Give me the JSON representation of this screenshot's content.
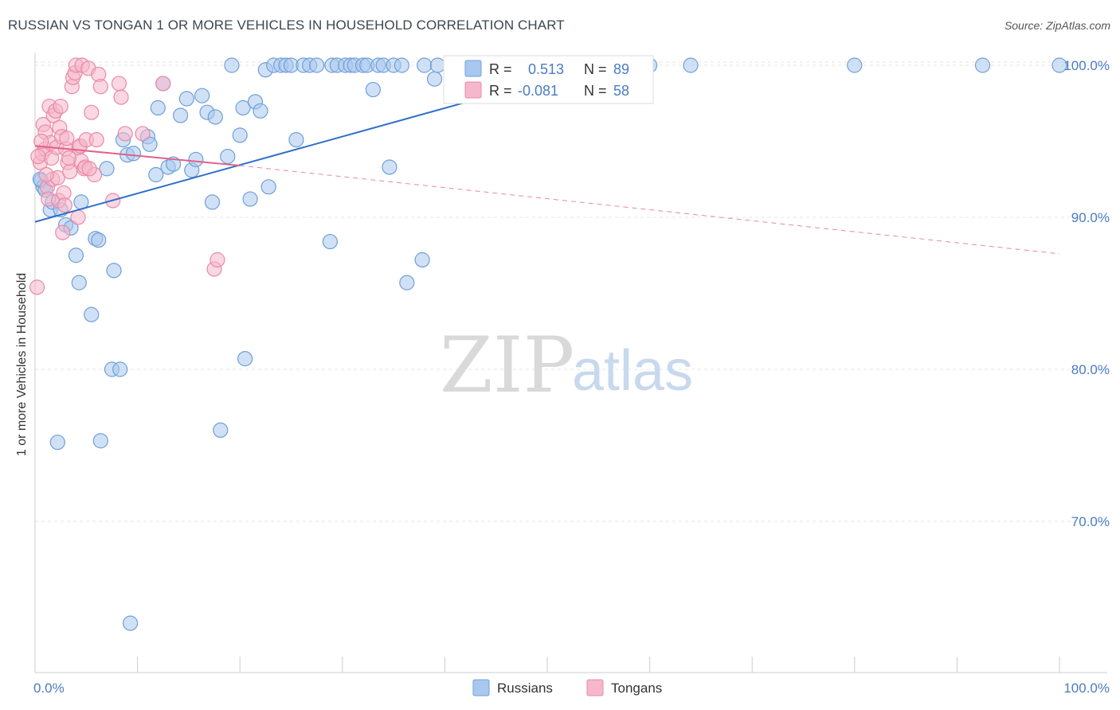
{
  "title": "RUSSIAN VS TONGAN 1 OR MORE VEHICLES IN HOUSEHOLD CORRELATION CHART",
  "source": "Source: ZipAtlas.com",
  "watermark": {
    "zip": "ZIP",
    "atlas": "atlas"
  },
  "chart_data": {
    "type": "scatter",
    "title": "RUSSIAN VS TONGAN 1 OR MORE VEHICLES IN HOUSEHOLD CORRELATION CHART",
    "xlabel": "",
    "ylabel": "1 or more Vehicles in Household",
    "xlim": [
      0,
      100
    ],
    "ylim": [
      60,
      101.5
    ],
    "x_tick_labels": [
      "0.0%",
      "100.0%"
    ],
    "y_ticks": [
      70,
      80,
      90,
      100
    ],
    "y_tick_labels": [
      "70.0%",
      "80.0%",
      "90.0%",
      "100.0%"
    ],
    "grid": true,
    "legend": {
      "placement": "top-center",
      "entries": [
        {
          "name": "Russians",
          "r_label": "R =",
          "r_value": "0.513",
          "n_label": "N =",
          "n_value": "89",
          "color": "#a9c8ef",
          "stroke": "#6f9fd8"
        },
        {
          "name": "Tongans",
          "r_label": "R =",
          "r_value": "-0.081",
          "n_label": "N =",
          "n_value": "58",
          "color": "#f6b7cb",
          "stroke": "#e98aa8"
        }
      ]
    },
    "series": [
      {
        "name": "Russians",
        "color": "#a9c8ef",
        "stroke": "#6f9fd8",
        "trend": {
          "x": [
            0,
            54
          ],
          "y": [
            89.7,
            99.8
          ],
          "color": "#2f6fc8"
        },
        "points": [
          [
            0.6,
            92.4
          ],
          [
            0.8,
            92.0
          ],
          [
            1.0,
            91.8
          ],
          [
            1.5,
            90.5
          ],
          [
            1.7,
            91.0
          ],
          [
            2.2,
            75.2
          ],
          [
            3.0,
            89.5
          ],
          [
            3.5,
            89.3
          ],
          [
            4.0,
            87.5
          ],
          [
            4.3,
            85.7
          ],
          [
            5.5,
            83.6
          ],
          [
            5.9,
            88.6
          ],
          [
            6.2,
            88.5
          ],
          [
            6.4,
            75.3
          ],
          [
            7.0,
            93.2
          ],
          [
            7.7,
            86.5
          ],
          [
            7.5,
            80.0
          ],
          [
            8.3,
            80.0
          ],
          [
            8.6,
            95.1
          ],
          [
            9.0,
            94.1
          ],
          [
            9.3,
            63.3
          ],
          [
            9.6,
            94.2
          ],
          [
            11.0,
            95.3
          ],
          [
            11.2,
            94.8
          ],
          [
            11.8,
            92.8
          ],
          [
            12.0,
            97.2
          ],
          [
            12.5,
            98.8
          ],
          [
            13.0,
            93.3
          ],
          [
            13.5,
            93.5
          ],
          [
            14.2,
            96.7
          ],
          [
            14.8,
            97.8
          ],
          [
            15.3,
            93.1
          ],
          [
            15.7,
            93.8
          ],
          [
            16.3,
            98.0
          ],
          [
            16.8,
            96.9
          ],
          [
            17.3,
            91.0
          ],
          [
            17.6,
            96.6
          ],
          [
            18.1,
            76.0
          ],
          [
            18.8,
            94.0
          ],
          [
            19.2,
            100.0
          ],
          [
            20.0,
            95.4
          ],
          [
            20.3,
            97.2
          ],
          [
            20.5,
            80.7
          ],
          [
            21.0,
            91.2
          ],
          [
            21.5,
            97.6
          ],
          [
            22.0,
            97.0
          ],
          [
            22.5,
            99.7
          ],
          [
            22.8,
            92.0
          ],
          [
            23.3,
            100.0
          ],
          [
            24.0,
            100.0
          ],
          [
            24.5,
            100.0
          ],
          [
            25.0,
            100.0
          ],
          [
            25.5,
            95.1
          ],
          [
            26.2,
            100.0
          ],
          [
            26.8,
            100.0
          ],
          [
            27.5,
            100.0
          ],
          [
            29.0,
            100.0
          ],
          [
            29.5,
            100.0
          ],
          [
            30.3,
            100.0
          ],
          [
            30.8,
            100.0
          ],
          [
            31.2,
            100.0
          ],
          [
            32.0,
            100.0
          ],
          [
            32.4,
            100.0
          ],
          [
            33.0,
            98.4
          ],
          [
            33.5,
            100.0
          ],
          [
            34.0,
            100.0
          ],
          [
            34.6,
            93.3
          ],
          [
            35.0,
            100.0
          ],
          [
            35.8,
            100.0
          ],
          [
            36.3,
            85.7
          ],
          [
            37.8,
            87.2
          ],
          [
            38.0,
            100.0
          ],
          [
            39.0,
            99.1
          ],
          [
            39.3,
            100.0
          ],
          [
            41.0,
            100.0
          ],
          [
            45.0,
            100.0
          ],
          [
            48.5,
            100.0
          ],
          [
            53.0,
            100.0
          ],
          [
            55.0,
            100.0
          ],
          [
            60.0,
            100.0
          ],
          [
            64.0,
            100.0
          ],
          [
            80.0,
            100.0
          ],
          [
            92.5,
            100.0
          ],
          [
            100.0,
            100.0
          ],
          [
            0.5,
            92.5
          ],
          [
            2.5,
            90.5
          ],
          [
            4.5,
            91.0
          ],
          [
            28.8,
            88.4
          ],
          [
            57.0,
            100.0
          ]
        ]
      },
      {
        "name": "Tongans",
        "color": "#f6b7cb",
        "stroke": "#e98aa8",
        "trend": {
          "x": [
            0,
            20
          ],
          "y": [
            94.7,
            93.4
          ],
          "color": "#e0608a"
        },
        "trend_dashed": {
          "x": [
            20,
            100
          ],
          "y": [
            93.4,
            87.6
          ],
          "color": "#e8879f"
        },
        "points": [
          [
            0.2,
            85.4
          ],
          [
            0.5,
            93.6
          ],
          [
            0.7,
            94.2
          ],
          [
            0.8,
            96.1
          ],
          [
            1.0,
            95.6
          ],
          [
            1.0,
            94.5
          ],
          [
            1.2,
            92.0
          ],
          [
            1.3,
            91.2
          ],
          [
            1.4,
            97.3
          ],
          [
            1.5,
            94.9
          ],
          [
            1.6,
            93.9
          ],
          [
            1.7,
            92.5
          ],
          [
            1.8,
            96.7
          ],
          [
            2.0,
            97.0
          ],
          [
            2.1,
            94.6
          ],
          [
            2.2,
            92.6
          ],
          [
            2.3,
            91.1
          ],
          [
            2.4,
            95.9
          ],
          [
            2.5,
            97.3
          ],
          [
            2.6,
            95.3
          ],
          [
            2.7,
            89.0
          ],
          [
            2.8,
            91.6
          ],
          [
            3.0,
            94.5
          ],
          [
            3.1,
            95.2
          ],
          [
            3.2,
            93.6
          ],
          [
            3.4,
            93.0
          ],
          [
            3.6,
            98.6
          ],
          [
            3.7,
            99.2
          ],
          [
            3.9,
            99.5
          ],
          [
            4.0,
            100.0
          ],
          [
            4.2,
            90.0
          ],
          [
            4.3,
            94.6
          ],
          [
            4.4,
            94.7
          ],
          [
            4.5,
            93.7
          ],
          [
            4.6,
            100.0
          ],
          [
            4.8,
            93.2
          ],
          [
            4.9,
            93.3
          ],
          [
            5.0,
            95.1
          ],
          [
            5.2,
            99.8
          ],
          [
            5.5,
            96.9
          ],
          [
            5.8,
            92.8
          ],
          [
            6.0,
            95.1
          ],
          [
            6.2,
            99.4
          ],
          [
            6.4,
            98.6
          ],
          [
            7.6,
            91.1
          ],
          [
            8.2,
            98.8
          ],
          [
            8.4,
            97.9
          ],
          [
            8.8,
            95.5
          ],
          [
            10.5,
            95.5
          ],
          [
            12.5,
            98.8
          ],
          [
            17.5,
            86.6
          ],
          [
            17.8,
            87.2
          ],
          [
            0.3,
            94.0
          ],
          [
            1.1,
            92.8
          ],
          [
            2.9,
            90.8
          ],
          [
            3.3,
            93.9
          ],
          [
            5.3,
            93.2
          ],
          [
            0.6,
            95.0
          ]
        ]
      }
    ]
  }
}
